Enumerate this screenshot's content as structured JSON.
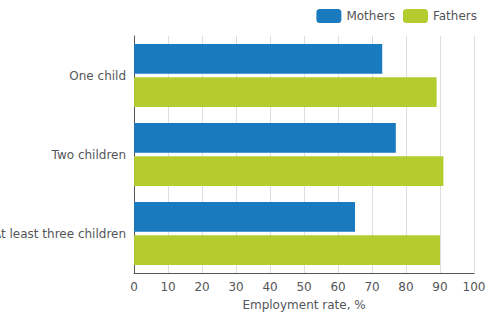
{
  "chart_data": {
    "type": "bar",
    "orientation": "horizontal",
    "categories": [
      "One child",
      "Two children",
      "At least three children"
    ],
    "series": [
      {
        "name": "Mothers",
        "color": "#1a7abf",
        "values": [
          73,
          77,
          65
        ]
      },
      {
        "name": "Fathers",
        "color": "#b5cc2e",
        "values": [
          89,
          91,
          90
        ]
      }
    ],
    "xlabel": "Employment rate, %",
    "xlim": [
      0,
      100
    ],
    "xticks": [
      0,
      10,
      20,
      30,
      40,
      50,
      60,
      70,
      80,
      90,
      100
    ],
    "grid": true,
    "legend": "upper right"
  }
}
